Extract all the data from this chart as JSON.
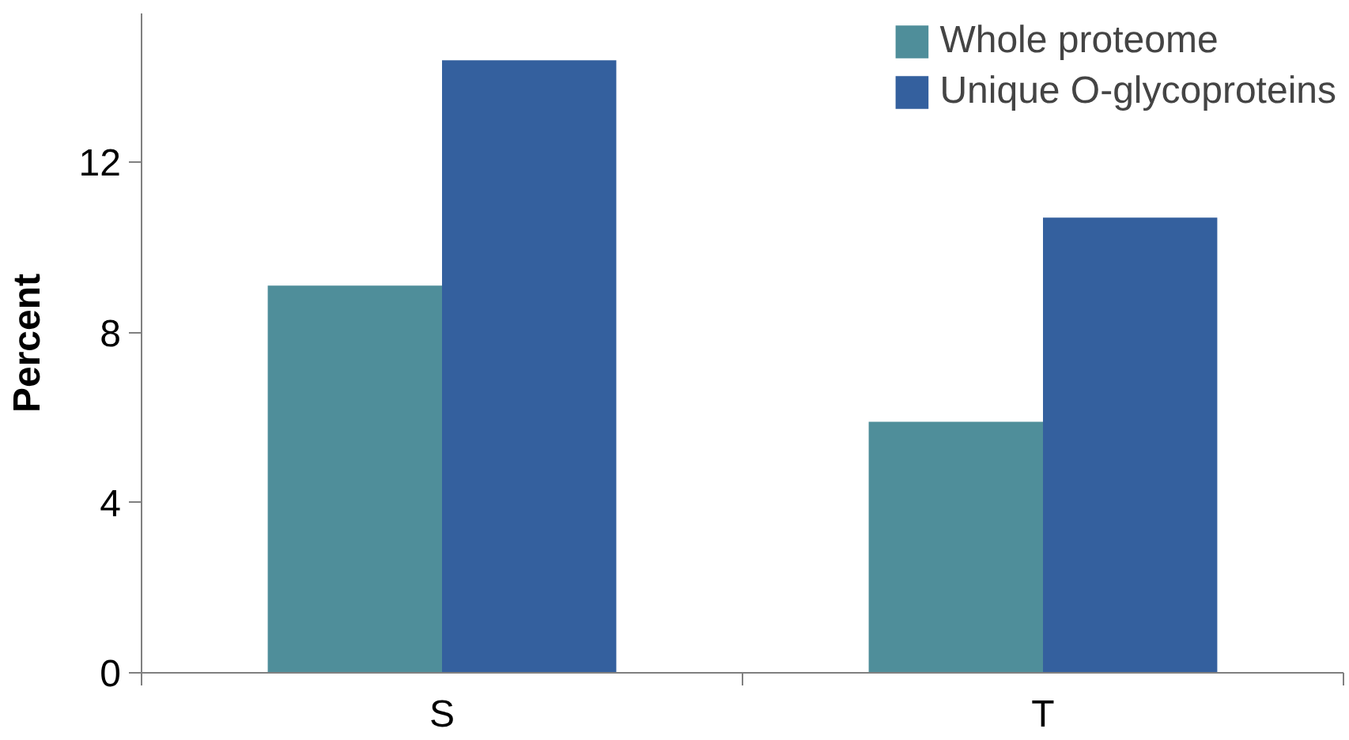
{
  "chart_data": {
    "type": "bar",
    "ylabel": "Percent",
    "categories": [
      "S",
      "T"
    ],
    "series": [
      {
        "name": "Whole proteome",
        "color": "#4f8e9a",
        "values": [
          9.1,
          5.9
        ]
      },
      {
        "name": "Unique O-glycoproteins",
        "color": "#34609e",
        "values": [
          14.4,
          10.7
        ]
      }
    ],
    "ylim": [
      0,
      15.5
    ],
    "yticks": [
      0,
      4,
      8,
      12
    ],
    "grid": false,
    "legend": "top right"
  }
}
